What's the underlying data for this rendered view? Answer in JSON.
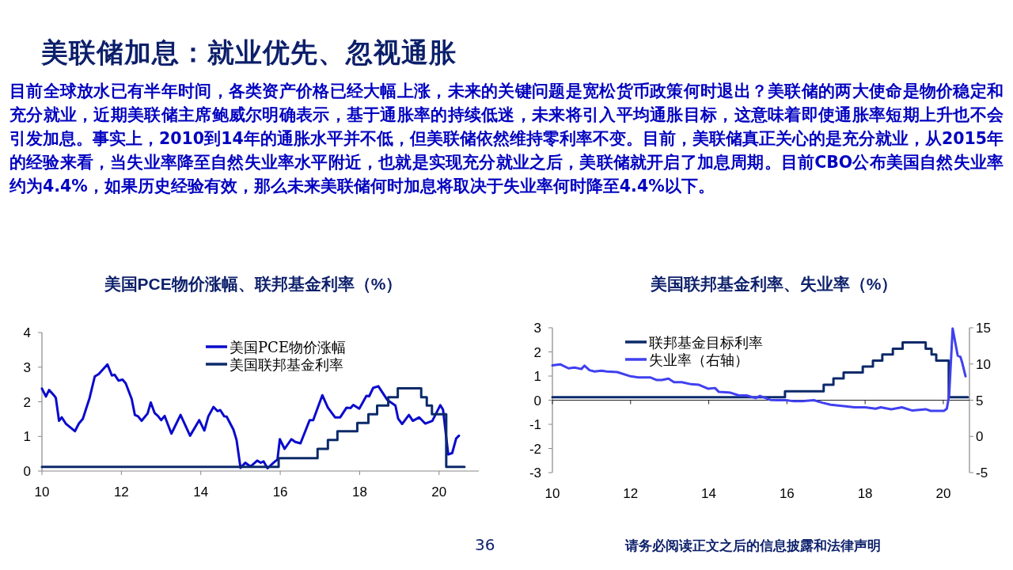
{
  "chart_data": [
    {
      "type": "other",
      "title": "美联储加息：就业优先、忽视通胀",
      "subtitle": "目前全球放水已有半年时间，各类资产价格已经大幅上涨，未来的关键问题是宽松货币政策何时退出？美联储的两大使命是物价稳定和充分就业，近期美联储主席鲍威尔明确表示，基于通胀率的持续低迷，未来将引入平均通胀目标，这意味着即使通胀率短期上升也不会引发加息。事实上，2010到14年的通胀水平并不低，但美联储依然维持零利率不变。目前，美联储真正关心的是充分就业，从2015年的经验来看，当失业率降至自然失业率水平附近，也就是实现充分就业之后，美联储就开启了加息周期。目前CBO公布美国自然失业率约为4.4%，如果历史经验有效，那么未来美联储何时加息将取决于失业率何时降至4.4%以下。",
      "annotations": [
        "36",
        "请务必阅读正文之后的信息披露和法律声明"
      ]
    },
    {
      "type": "line",
      "title": "美国PCE物价涨幅、联邦基金利率（%）",
      "xlim": [
        10,
        21
      ],
      "xticks": [
        10,
        12,
        14,
        16,
        18,
        20
      ],
      "ylim": [
        0,
        4
      ],
      "yticks": [
        0,
        1,
        2,
        3,
        4
      ],
      "legend": "top right",
      "series": [
        {
          "name": "美国PCE物价涨幅",
          "color": "#0a0acc",
          "x": [
            10.0,
            10.1,
            10.18,
            10.3,
            10.35,
            10.43,
            10.5,
            10.6,
            10.83,
            10.93,
            11.03,
            11.2,
            11.33,
            11.43,
            11.65,
            11.76,
            11.83,
            11.93,
            12.03,
            12.11,
            12.26,
            12.34,
            12.42,
            12.51,
            12.66,
            12.74,
            12.84,
            12.92,
            13.0,
            13.09,
            13.26,
            13.49,
            13.73,
            13.96,
            14.09,
            14.19,
            14.32,
            14.42,
            14.49,
            14.59,
            14.65,
            14.82,
            14.9,
            15.0,
            15.12,
            15.25,
            15.42,
            15.51,
            15.58,
            15.68,
            15.85,
            15.93,
            15.99,
            16.11,
            16.28,
            16.38,
            16.51,
            16.74,
            16.83,
            17.06,
            17.2,
            17.38,
            17.51,
            17.67,
            17.77,
            17.84,
            17.99,
            18.17,
            18.24,
            18.34,
            18.47,
            18.7,
            18.9,
            18.97,
            19.07,
            19.24,
            19.34,
            19.5,
            19.65,
            19.83,
            20.03,
            20.1,
            20.23,
            20.33,
            20.43,
            20.5
          ],
          "values": [
            2.38,
            2.15,
            2.34,
            2.19,
            2.11,
            1.45,
            1.55,
            1.37,
            1.15,
            1.37,
            1.51,
            2.11,
            2.73,
            2.8,
            3.08,
            2.76,
            2.78,
            2.61,
            2.64,
            2.53,
            2.08,
            1.62,
            1.58,
            1.45,
            1.66,
            1.98,
            1.67,
            1.59,
            1.47,
            1.59,
            1.08,
            1.62,
            1.02,
            1.47,
            1.17,
            1.58,
            1.85,
            1.73,
            1.76,
            1.58,
            1.57,
            1.2,
            0.9,
            0.09,
            0.24,
            0.13,
            0.3,
            0.24,
            0.28,
            0.08,
            0.26,
            0.33,
            0.92,
            0.64,
            0.92,
            0.84,
            0.8,
            1.47,
            1.47,
            2.19,
            1.83,
            1.55,
            1.55,
            1.83,
            1.82,
            1.91,
            1.8,
            2.17,
            2.16,
            2.4,
            2.45,
            2.05,
            1.89,
            1.51,
            1.36,
            1.62,
            1.45,
            1.55,
            1.37,
            1.45,
            1.9,
            1.77,
            0.48,
            0.52,
            0.94,
            1.02
          ]
        },
        {
          "name": "美国联邦基金利率",
          "type": "step",
          "color": "#0c2a6a",
          "x": [
            10,
            15.96,
            16.94,
            17.2,
            17.44,
            17.94,
            18.22,
            18.44,
            18.72,
            18.96,
            19.55,
            19.69,
            19.82,
            20.18,
            20.64
          ],
          "values": [
            0.12,
            0.37,
            0.64,
            0.9,
            1.15,
            1.39,
            1.64,
            1.89,
            2.13,
            2.39,
            2.13,
            1.89,
            1.64,
            0.12,
            0.12
          ]
        }
      ]
    },
    {
      "type": "line",
      "title": "美国联邦基金利率、失业率（%）",
      "xlim": [
        10,
        20.67
      ],
      "xticks": [
        10,
        12,
        14,
        16,
        18,
        20
      ],
      "ylim": [
        -3,
        3
      ],
      "yticks": [
        -3,
        -2,
        -1,
        0,
        1,
        2,
        3
      ],
      "y2lim": [
        -5,
        15
      ],
      "y2ticks": [
        -5,
        0,
        5,
        10,
        15
      ],
      "legend": "top left",
      "series": [
        {
          "name": "联邦基金目标利率",
          "type": "step",
          "color": "#0c2a6a",
          "x": [
            10,
            15.95,
            16.94,
            17.19,
            17.45,
            17.94,
            18.2,
            18.44,
            18.71,
            18.96,
            19.55,
            19.7,
            19.82,
            20.14,
            20.63
          ],
          "values": [
            0.12,
            0.37,
            0.64,
            0.9,
            1.15,
            1.39,
            1.64,
            1.89,
            2.13,
            2.39,
            2.13,
            1.89,
            1.64,
            0.12,
            0.12
          ]
        },
        {
          "name": "失业率（右轴）",
          "axis": "y2",
          "color": "#4040f0",
          "x": [
            10.0,
            10.2,
            10.41,
            10.57,
            10.74,
            10.82,
            10.95,
            11.08,
            11.25,
            11.39,
            11.66,
            12.0,
            12.2,
            12.5,
            12.67,
            12.8,
            12.97,
            13.11,
            13.31,
            13.55,
            13.75,
            13.99,
            14.16,
            14.26,
            14.43,
            14.56,
            14.77,
            14.97,
            15.2,
            15.31,
            15.58,
            15.78,
            15.98,
            16.18,
            16.38,
            16.69,
            16.92,
            17.12,
            17.46,
            17.73,
            18.0,
            18.27,
            18.4,
            18.67,
            18.94,
            19.21,
            19.55,
            19.68,
            20.02,
            20.09,
            20.15,
            20.24,
            20.37,
            20.44,
            20.49,
            20.57
          ],
          "values": [
            9.8,
            9.95,
            9.4,
            9.5,
            9.3,
            9.76,
            9.14,
            8.96,
            9.07,
            8.96,
            8.88,
            8.3,
            8.15,
            8.15,
            7.78,
            7.78,
            7.97,
            7.49,
            7.49,
            7.2,
            7.12,
            6.58,
            6.68,
            6.14,
            6.1,
            6.03,
            5.66,
            5.66,
            5.29,
            5.59,
            5.04,
            5.0,
            5.0,
            4.85,
            4.85,
            5.0,
            4.63,
            4.38,
            4.19,
            4.01,
            4.01,
            3.83,
            4.01,
            3.75,
            4.01,
            3.57,
            3.75,
            3.53,
            3.53,
            3.83,
            5.66,
            14.9,
            11.15,
            10.97,
            10.05,
            8.3
          ]
        }
      ]
    }
  ]
}
